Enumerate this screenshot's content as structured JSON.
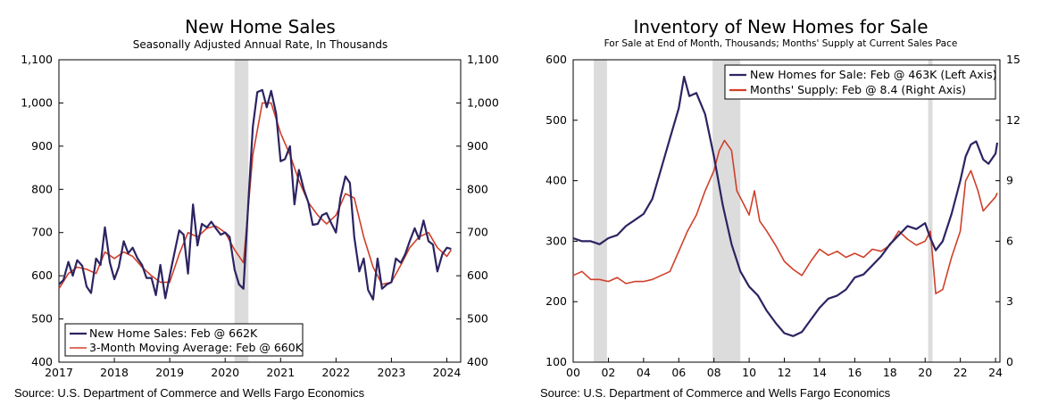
{
  "left": {
    "title": "New Home Sales",
    "subtitle": "Seasonally Adjusted Annual Rate, In Thousands",
    "source": "Source: U.S. Department of Commerce and Wells Fargo Economics"
  },
  "right": {
    "title": "Inventory of New Homes for Sale",
    "subtitle": "For Sale at End of Month, Thousands; Months' Supply at Current Sales Pace",
    "source": "Source: U.S. Department of Commerce and Wells Fargo Economics"
  },
  "colors": {
    "navy": "#2b2462",
    "red": "#d0402a",
    "recession": "#dcdcdc"
  },
  "chart_data": [
    {
      "type": "line",
      "title": "New Home Sales",
      "subtitle": "Seasonally Adjusted Annual Rate, In Thousands",
      "x_ticks": [
        "2017",
        "2018",
        "2019",
        "2020",
        "2021",
        "2022",
        "2023",
        "2024"
      ],
      "xlim": [
        2017,
        2024.25
      ],
      "ylim": [
        400,
        1100
      ],
      "y_ticks": [
        "400",
        "500",
        "600",
        "700",
        "800",
        "900",
        "1,000",
        "1,100"
      ],
      "y_tick_values": [
        400,
        500,
        600,
        700,
        800,
        900,
        1000,
        1100
      ],
      "legend_position": "bottom-left",
      "recession": [
        [
          2020.17,
          2020.42
        ]
      ],
      "series": [
        {
          "name": "New Home Sales: Feb @ 662K",
          "color": "#2b2462",
          "x": [
            2017.0,
            2017.08,
            2017.17,
            2017.25,
            2017.33,
            2017.42,
            2017.5,
            2017.58,
            2017.67,
            2017.75,
            2017.83,
            2017.92,
            2018.0,
            2018.08,
            2018.17,
            2018.25,
            2018.33,
            2018.42,
            2018.5,
            2018.58,
            2018.67,
            2018.75,
            2018.83,
            2018.92,
            2019.0,
            2019.08,
            2019.17,
            2019.25,
            2019.33,
            2019.42,
            2019.5,
            2019.58,
            2019.67,
            2019.75,
            2019.83,
            2019.92,
            2020.0,
            2020.08,
            2020.17,
            2020.25,
            2020.33,
            2020.42,
            2020.5,
            2020.58,
            2020.67,
            2020.75,
            2020.83,
            2020.92,
            2021.0,
            2021.08,
            2021.17,
            2021.25,
            2021.33,
            2021.42,
            2021.5,
            2021.58,
            2021.67,
            2021.75,
            2021.83,
            2021.92,
            2022.0,
            2022.08,
            2022.17,
            2022.25,
            2022.33,
            2022.42,
            2022.5,
            2022.58,
            2022.67,
            2022.75,
            2022.83,
            2022.92,
            2023.0,
            2023.08,
            2023.17,
            2023.25,
            2023.33,
            2023.42,
            2023.5,
            2023.58,
            2023.67,
            2023.75,
            2023.83,
            2023.92,
            2024.0,
            2024.08
          ],
          "values": [
            580,
            590,
            632,
            600,
            636,
            623,
            575,
            560,
            640,
            625,
            712,
            630,
            592,
            620,
            680,
            652,
            665,
            640,
            625,
            595,
            595,
            555,
            625,
            548,
            600,
            650,
            705,
            695,
            605,
            765,
            670,
            720,
            712,
            725,
            710,
            695,
            700,
            690,
            614,
            580,
            570,
            775,
            945,
            1025,
            1030,
            990,
            1028,
            975,
            865,
            870,
            900,
            765,
            845,
            800,
            770,
            718,
            720,
            740,
            745,
            720,
            700,
            780,
            830,
            815,
            690,
            610,
            640,
            567,
            545,
            640,
            570,
            580,
            585,
            640,
            630,
            650,
            680,
            710,
            685,
            728,
            680,
            672,
            610,
            650,
            665,
            662
          ]
        },
        {
          "name": "3-Month Moving Average: Feb @ 660K",
          "color": "#d0402a",
          "x": [
            2017.0,
            2017.17,
            2017.33,
            2017.5,
            2017.67,
            2017.83,
            2018.0,
            2018.17,
            2018.33,
            2018.5,
            2018.67,
            2018.83,
            2019.0,
            2019.17,
            2019.33,
            2019.5,
            2019.67,
            2019.83,
            2020.0,
            2020.17,
            2020.33,
            2020.5,
            2020.67,
            2020.83,
            2021.0,
            2021.17,
            2021.33,
            2021.5,
            2021.67,
            2021.83,
            2022.0,
            2022.17,
            2022.33,
            2022.5,
            2022.67,
            2022.83,
            2023.0,
            2023.17,
            2023.33,
            2023.5,
            2023.67,
            2023.83,
            2024.0,
            2024.08
          ],
          "values": [
            570,
            605,
            620,
            615,
            605,
            655,
            640,
            655,
            645,
            620,
            600,
            585,
            585,
            650,
            700,
            690,
            710,
            715,
            700,
            660,
            630,
            880,
            1000,
            1000,
            930,
            880,
            820,
            770,
            740,
            720,
            740,
            790,
            780,
            690,
            620,
            580,
            585,
            625,
            665,
            690,
            700,
            665,
            645,
            660
          ]
        }
      ]
    },
    {
      "type": "line",
      "title": "Inventory of New Homes for Sale",
      "subtitle": "For Sale at End of Month, Thousands; Months' Supply at Current Sales Pace",
      "x_ticks": [
        "00",
        "02",
        "04",
        "06",
        "08",
        "10",
        "12",
        "14",
        "16",
        "18",
        "20",
        "22",
        "24"
      ],
      "xlim": [
        2000,
        2024.25
      ],
      "ylim_left": [
        100,
        600
      ],
      "ylim_right": [
        0,
        15
      ],
      "y_ticks_left": [
        "100",
        "200",
        "300",
        "400",
        "500",
        "600"
      ],
      "y_tick_values_left": [
        100,
        200,
        300,
        400,
        500,
        600
      ],
      "y_ticks_right": [
        "0",
        "3",
        "6",
        "9",
        "12",
        "15"
      ],
      "y_tick_values_right": [
        0,
        3,
        6,
        9,
        12,
        15
      ],
      "legend_position": "top-right",
      "recession": [
        [
          2001.17,
          2001.92
        ],
        [
          2007.92,
          2009.5
        ],
        [
          2020.17,
          2020.42
        ]
      ],
      "series": [
        {
          "name": "New Homes for Sale: Feb @ 463K (Left Axis)",
          "axis": "left",
          "color": "#2b2462",
          "x": [
            2000,
            2000.5,
            2001,
            2001.5,
            2002,
            2002.5,
            2003,
            2003.5,
            2004,
            2004.5,
            2005,
            2005.5,
            2006,
            2006.3,
            2006.6,
            2007,
            2007.5,
            2008,
            2008.5,
            2009,
            2009.5,
            2010,
            2010.5,
            2011,
            2011.5,
            2012,
            2012.5,
            2013,
            2013.5,
            2014,
            2014.5,
            2015,
            2015.5,
            2016,
            2016.5,
            2017,
            2017.5,
            2018,
            2018.5,
            2019,
            2019.5,
            2020,
            2020.3,
            2020.6,
            2021,
            2021.5,
            2022,
            2022.3,
            2022.6,
            2022.9,
            2023.3,
            2023.6,
            2024,
            2024.1
          ],
          "values": [
            305,
            300,
            300,
            295,
            305,
            310,
            325,
            335,
            345,
            370,
            420,
            470,
            520,
            572,
            540,
            545,
            510,
            440,
            360,
            295,
            250,
            225,
            210,
            185,
            165,
            148,
            143,
            150,
            170,
            190,
            205,
            210,
            220,
            240,
            245,
            260,
            275,
            295,
            310,
            325,
            320,
            330,
            305,
            285,
            300,
            345,
            400,
            440,
            460,
            465,
            435,
            428,
            445,
            463
          ]
        },
        {
          "name": "Months' Supply: Feb @ 8.4 (Right Axis)",
          "axis": "right",
          "color": "#d0402a",
          "x": [
            2000,
            2000.5,
            2001,
            2001.5,
            2002,
            2002.5,
            2003,
            2003.5,
            2004,
            2004.5,
            2005,
            2005.5,
            2006,
            2006.5,
            2007,
            2007.5,
            2008,
            2008.3,
            2008.6,
            2009,
            2009.3,
            2009.6,
            2010,
            2010.3,
            2010.6,
            2011,
            2011.5,
            2012,
            2012.5,
            2013,
            2013.5,
            2014,
            2014.5,
            2015,
            2015.5,
            2016,
            2016.5,
            2017,
            2017.5,
            2018,
            2018.5,
            2019,
            2019.5,
            2020,
            2020.3,
            2020.6,
            2021,
            2021.5,
            2022,
            2022.3,
            2022.6,
            2023,
            2023.3,
            2023.6,
            2024,
            2024.1
          ],
          "values": [
            4.3,
            4.5,
            4.1,
            4.1,
            4.0,
            4.2,
            3.9,
            4.0,
            4.0,
            4.1,
            4.3,
            4.5,
            5.5,
            6.5,
            7.3,
            8.5,
            9.5,
            10.5,
            11.0,
            10.5,
            8.5,
            8.0,
            7.3,
            8.5,
            7.0,
            6.5,
            5.8,
            5.0,
            4.6,
            4.3,
            5.0,
            5.6,
            5.3,
            5.5,
            5.2,
            5.4,
            5.2,
            5.6,
            5.5,
            5.8,
            6.5,
            6.1,
            5.8,
            6.0,
            6.5,
            3.4,
            3.6,
            5.2,
            6.5,
            9.0,
            9.5,
            8.5,
            7.5,
            7.8,
            8.2,
            8.4
          ]
        }
      ]
    }
  ]
}
